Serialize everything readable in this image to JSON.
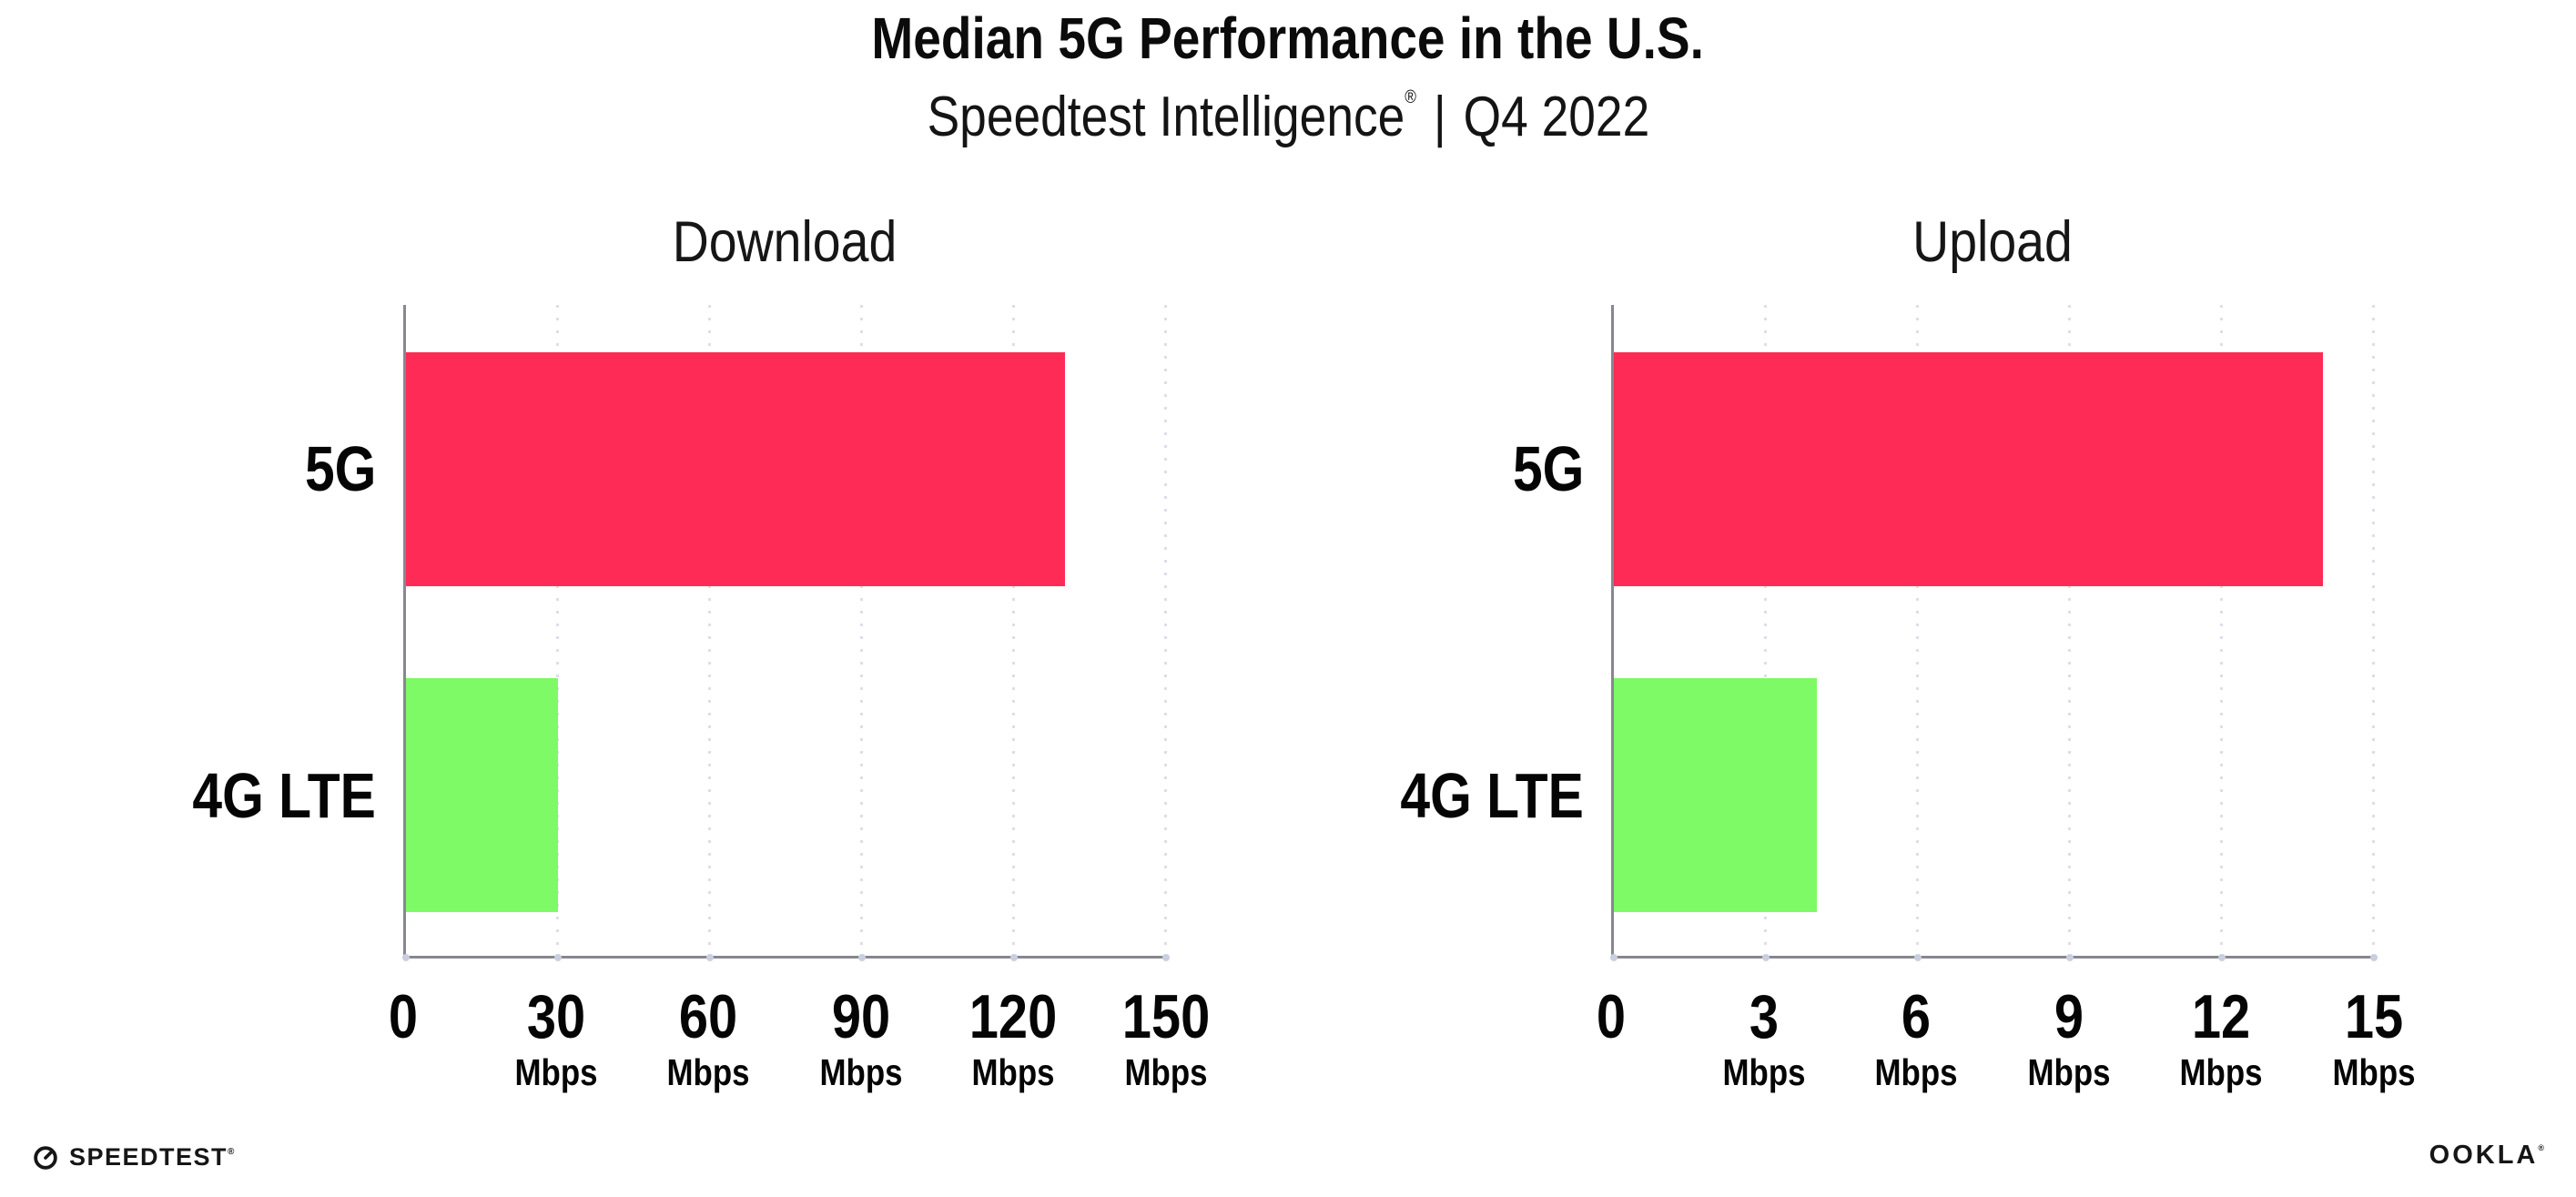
{
  "header": {
    "title": "Median 5G Performance in the U.S.",
    "product": "Speedtest Intelligence",
    "registered_mark": "®",
    "divider": "|",
    "quarter": "Q4 2022"
  },
  "chart_data": [
    {
      "type": "bar",
      "orientation": "horizontal",
      "title": "Download",
      "categories": [
        "5G",
        "4G LTE"
      ],
      "values": [
        130,
        30
      ],
      "unit": "Mbps",
      "xlim": [
        0,
        150
      ],
      "xticks": [
        0,
        30,
        60,
        90,
        120,
        150
      ],
      "grid": "dotted-vertical",
      "legend": "none",
      "bar_colors": [
        "#FF2B57",
        "#7EFA66"
      ]
    },
    {
      "type": "bar",
      "orientation": "horizontal",
      "title": "Upload",
      "categories": [
        "5G",
        "4G LTE"
      ],
      "values": [
        14,
        4
      ],
      "unit": "Mbps",
      "xlim": [
        0,
        15
      ],
      "xticks": [
        0,
        3,
        6,
        9,
        12,
        15
      ],
      "grid": "dotted-vertical",
      "legend": "none",
      "bar_colors": [
        "#FF2B57",
        "#7EFA66"
      ]
    }
  ],
  "colors": {
    "bar_5g": "#FF2B57",
    "bar_4g_lte": "#7EFA66",
    "axis": "#87878F",
    "gridline": "#DCDFE9",
    "background": "#FFFFFF",
    "text": "#0B0B0C"
  },
  "footer": {
    "speedtest_wordmark": "SPEEDTEST",
    "speedtest_registered": "®",
    "ookla_wordmark": "OOKLA",
    "ookla_registered": "®"
  }
}
